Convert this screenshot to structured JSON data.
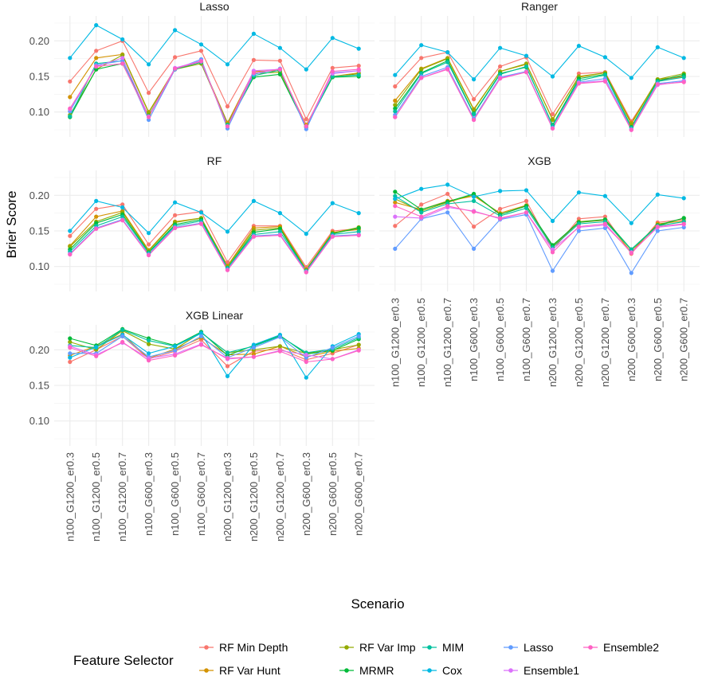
{
  "chart_data": {
    "type": "line",
    "facet": "panels",
    "xlabel": "Scenario",
    "ylabel": "Brier Score",
    "ylim": [
      0.065,
      0.235
    ],
    "yticks": [
      0.1,
      0.15,
      0.2
    ],
    "ytick_labels": [
      "0.10",
      "0.15",
      "0.20"
    ],
    "categories": [
      "n100_G1200_er0.3",
      "n100_G1200_er0.5",
      "n100_G1200_er0.7",
      "n100_G600_er0.3",
      "n100_G600_er0.5",
      "n100_G600_er0.7",
      "n200_G1200_er0.3",
      "n200_G1200_er0.5",
      "n200_G1200_er0.7",
      "n200_G600_er0.3",
      "n200_G600_er0.5",
      "n200_G600_er0.7"
    ],
    "legend": {
      "title": "Feature Selector",
      "position": "bottom",
      "entries": [
        {
          "name": "RF Min Depth",
          "color": "#F8766D"
        },
        {
          "name": "RF Var Hunt",
          "color": "#D39200"
        },
        {
          "name": "RF Var Imp",
          "color": "#93AA00"
        },
        {
          "name": "MRMR",
          "color": "#00BA38"
        },
        {
          "name": "MIM",
          "color": "#00C19F"
        },
        {
          "name": "Cox",
          "color": "#00B9E3"
        },
        {
          "name": "Lasso",
          "color": "#619CFF"
        },
        {
          "name": "Ensemble1",
          "color": "#DB72FB"
        },
        {
          "name": "Ensemble2",
          "color": "#FF61C3"
        }
      ]
    },
    "panels": [
      {
        "title": "Lasso",
        "series": [
          {
            "name": "RF Min Depth",
            "values": [
              0.143,
              0.186,
              0.2,
              0.127,
              0.177,
              0.186,
              0.108,
              0.173,
              0.172,
              0.09,
              0.162,
              0.165
            ]
          },
          {
            "name": "RF Var Hunt",
            "values": [
              0.121,
              0.176,
              0.181,
              0.1,
              0.161,
              0.17,
              0.085,
              0.157,
              0.158,
              0.082,
              0.15,
              0.155
            ]
          },
          {
            "name": "RF Var Imp",
            "values": [
              0.096,
              0.16,
              0.18,
              0.099,
              0.16,
              0.168,
              0.083,
              0.154,
              0.156,
              0.08,
              0.149,
              0.154
            ]
          },
          {
            "name": "MRMR",
            "values": [
              0.093,
              0.16,
              0.168,
              0.095,
              0.16,
              0.17,
              0.081,
              0.149,
              0.153,
              0.079,
              0.149,
              0.15
            ]
          },
          {
            "name": "MIM",
            "values": [
              0.094,
              0.168,
              0.172,
              0.094,
              0.161,
              0.17,
              0.082,
              0.151,
              0.159,
              0.079,
              0.15,
              0.152
            ]
          },
          {
            "name": "Cox",
            "values": [
              0.176,
              0.222,
              0.202,
              0.167,
              0.215,
              0.195,
              0.167,
              0.21,
              0.19,
              0.16,
              0.204,
              0.189
            ]
          },
          {
            "name": "Lasso",
            "values": [
              0.101,
              0.166,
              0.172,
              0.089,
              0.16,
              0.174,
              0.077,
              0.153,
              0.161,
              0.076,
              0.155,
              0.158
            ]
          },
          {
            "name": "Ensemble1",
            "values": [
              0.104,
              0.164,
              0.176,
              0.094,
              0.162,
              0.172,
              0.08,
              0.158,
              0.16,
              0.08,
              0.154,
              0.158
            ]
          },
          {
            "name": "Ensemble2",
            "values": [
              0.105,
              0.164,
              0.168,
              0.093,
              0.161,
              0.171,
              0.08,
              0.155,
              0.16,
              0.08,
              0.157,
              0.16
            ]
          }
        ]
      },
      {
        "title": "Ranger",
        "series": [
          {
            "name": "RF Min Depth",
            "values": [
              0.136,
              0.176,
              0.184,
              0.118,
              0.164,
              0.177,
              0.097,
              0.154,
              0.156,
              0.087,
              0.144,
              0.15
            ]
          },
          {
            "name": "RF Var Hunt",
            "values": [
              0.116,
              0.161,
              0.176,
              0.104,
              0.157,
              0.167,
              0.09,
              0.149,
              0.155,
              0.085,
              0.146,
              0.15
            ]
          },
          {
            "name": "RF Var Imp",
            "values": [
              0.11,
              0.16,
              0.175,
              0.103,
              0.157,
              0.168,
              0.089,
              0.15,
              0.155,
              0.083,
              0.146,
              0.154
            ]
          },
          {
            "name": "MRMR",
            "values": [
              0.105,
              0.155,
              0.172,
              0.098,
              0.154,
              0.163,
              0.082,
              0.147,
              0.153,
              0.079,
              0.144,
              0.152
            ]
          },
          {
            "name": "MIM",
            "values": [
              0.101,
              0.154,
              0.17,
              0.097,
              0.153,
              0.164,
              0.081,
              0.144,
              0.152,
              0.078,
              0.143,
              0.149
            ]
          },
          {
            "name": "Cox",
            "values": [
              0.152,
              0.194,
              0.184,
              0.146,
              0.19,
              0.179,
              0.15,
              0.193,
              0.177,
              0.148,
              0.191,
              0.176
            ]
          },
          {
            "name": "Lasso",
            "values": [
              0.096,
              0.15,
              0.163,
              0.091,
              0.149,
              0.157,
              0.078,
              0.142,
              0.147,
              0.076,
              0.14,
              0.144
            ]
          },
          {
            "name": "Ensemble1",
            "values": [
              0.093,
              0.148,
              0.161,
              0.089,
              0.148,
              0.156,
              0.077,
              0.141,
              0.144,
              0.075,
              0.138,
              0.143
            ]
          },
          {
            "name": "Ensemble2",
            "values": [
              0.093,
              0.148,
              0.16,
              0.089,
              0.147,
              0.156,
              0.077,
              0.14,
              0.143,
              0.075,
              0.139,
              0.142
            ]
          }
        ]
      },
      {
        "title": "RF",
        "series": [
          {
            "name": "RF Min Depth",
            "values": [
              0.143,
              0.181,
              0.187,
              0.131,
              0.172,
              0.177,
              0.106,
              0.157,
              0.157,
              0.099,
              0.15,
              0.153
            ]
          },
          {
            "name": "RF Var Hunt",
            "values": [
              0.129,
              0.17,
              0.178,
              0.123,
              0.163,
              0.168,
              0.101,
              0.154,
              0.156,
              0.096,
              0.148,
              0.152
            ]
          },
          {
            "name": "RF Var Imp",
            "values": [
              0.128,
              0.163,
              0.176,
              0.122,
              0.162,
              0.168,
              0.1,
              0.151,
              0.154,
              0.096,
              0.147,
              0.155
            ]
          },
          {
            "name": "MRMR",
            "values": [
              0.124,
              0.161,
              0.173,
              0.12,
              0.159,
              0.166,
              0.098,
              0.148,
              0.153,
              0.094,
              0.146,
              0.154
            ]
          },
          {
            "name": "MIM",
            "values": [
              0.121,
              0.157,
              0.17,
              0.119,
              0.157,
              0.164,
              0.098,
              0.145,
              0.149,
              0.094,
              0.145,
              0.149
            ]
          },
          {
            "name": "Cox",
            "values": [
              0.15,
              0.192,
              0.183,
              0.147,
              0.19,
              0.176,
              0.149,
              0.192,
              0.175,
              0.146,
              0.189,
              0.175
            ]
          },
          {
            "name": "Lasso",
            "values": [
              0.118,
              0.154,
              0.166,
              0.117,
              0.155,
              0.161,
              0.096,
              0.143,
              0.145,
              0.093,
              0.143,
              0.145
            ]
          },
          {
            "name": "Ensemble1",
            "values": [
              0.117,
              0.153,
              0.165,
              0.116,
              0.154,
              0.16,
              0.095,
              0.142,
              0.144,
              0.092,
              0.142,
              0.144
            ]
          },
          {
            "name": "Ensemble2",
            "values": [
              0.117,
              0.153,
              0.165,
              0.116,
              0.154,
              0.16,
              0.095,
              0.142,
              0.144,
              0.092,
              0.142,
              0.144
            ]
          }
        ]
      },
      {
        "title": "XGB",
        "series": [
          {
            "name": "RF Min Depth",
            "values": [
              0.157,
              0.187,
              0.202,
              0.156,
              0.181,
              0.192,
              0.123,
              0.167,
              0.17,
              0.118,
              0.162,
              0.166
            ]
          },
          {
            "name": "RF Var Hunt",
            "values": [
              0.19,
              0.18,
              0.192,
              0.199,
              0.175,
              0.186,
              0.128,
              0.162,
              0.165,
              0.12,
              0.16,
              0.164
            ]
          },
          {
            "name": "RF Var Imp",
            "values": [
              0.195,
              0.178,
              0.19,
              0.201,
              0.173,
              0.185,
              0.129,
              0.163,
              0.166,
              0.123,
              0.157,
              0.168
            ]
          },
          {
            "name": "MRMR",
            "values": [
              0.205,
              0.18,
              0.191,
              0.202,
              0.173,
              0.185,
              0.13,
              0.162,
              0.166,
              0.124,
              0.158,
              0.168
            ]
          },
          {
            "name": "MIM",
            "values": [
              0.199,
              0.176,
              0.188,
              0.192,
              0.171,
              0.182,
              0.127,
              0.16,
              0.163,
              0.124,
              0.157,
              0.163
            ]
          },
          {
            "name": "Cox",
            "values": [
              0.195,
              0.209,
              0.215,
              0.198,
              0.206,
              0.207,
              0.164,
              0.204,
              0.199,
              0.161,
              0.201,
              0.196
            ]
          },
          {
            "name": "Lasso",
            "values": [
              0.125,
              0.167,
              0.176,
              0.125,
              0.166,
              0.173,
              0.094,
              0.15,
              0.154,
              0.091,
              0.15,
              0.155
            ]
          },
          {
            "name": "Ensemble1",
            "values": [
              0.17,
              0.168,
              0.183,
              0.178,
              0.167,
              0.176,
              0.124,
              0.155,
              0.158,
              0.12,
              0.155,
              0.159
            ]
          },
          {
            "name": "Ensemble2",
            "values": [
              0.185,
              0.17,
              0.185,
              0.177,
              0.168,
              0.176,
              0.12,
              0.156,
              0.16,
              0.119,
              0.156,
              0.16
            ]
          }
        ]
      },
      {
        "title": "XGB Linear",
        "series": [
          {
            "name": "RF Min Depth",
            "values": [
              0.183,
              0.2,
              0.219,
              0.187,
              0.198,
              0.214,
              0.177,
              0.198,
              0.201,
              0.186,
              0.195,
              0.207
            ]
          },
          {
            "name": "RF Var Hunt",
            "values": [
              0.192,
              0.205,
              0.222,
              0.188,
              0.201,
              0.217,
              0.193,
              0.194,
              0.205,
              0.19,
              0.198,
              0.202
            ]
          },
          {
            "name": "RF Var Imp",
            "values": [
              0.211,
              0.2,
              0.227,
              0.208,
              0.201,
              0.224,
              0.196,
              0.2,
              0.205,
              0.195,
              0.2,
              0.207
            ]
          },
          {
            "name": "MRMR",
            "values": [
              0.216,
              0.206,
              0.229,
              0.216,
              0.206,
              0.225,
              0.192,
              0.206,
              0.22,
              0.194,
              0.199,
              0.215
            ]
          },
          {
            "name": "MIM",
            "values": [
              0.206,
              0.203,
              0.228,
              0.213,
              0.205,
              0.224,
              0.196,
              0.205,
              0.219,
              0.196,
              0.201,
              0.217
            ]
          },
          {
            "name": "Cox",
            "values": [
              0.189,
              0.204,
              0.221,
              0.195,
              0.205,
              0.223,
              0.163,
              0.207,
              0.221,
              0.161,
              0.205,
              0.222
            ]
          },
          {
            "name": "Lasso",
            "values": [
              0.195,
              0.195,
              0.219,
              0.19,
              0.199,
              0.219,
              0.189,
              0.203,
              0.218,
              0.189,
              0.203,
              0.219
            ]
          },
          {
            "name": "Ensemble1",
            "values": [
              0.205,
              0.193,
              0.21,
              0.188,
              0.194,
              0.208,
              0.187,
              0.19,
              0.199,
              0.193,
              0.187,
              0.2
            ]
          },
          {
            "name": "Ensemble2",
            "values": [
              0.203,
              0.191,
              0.211,
              0.185,
              0.192,
              0.207,
              0.188,
              0.19,
              0.198,
              0.183,
              0.187,
              0.199
            ]
          }
        ]
      }
    ]
  }
}
